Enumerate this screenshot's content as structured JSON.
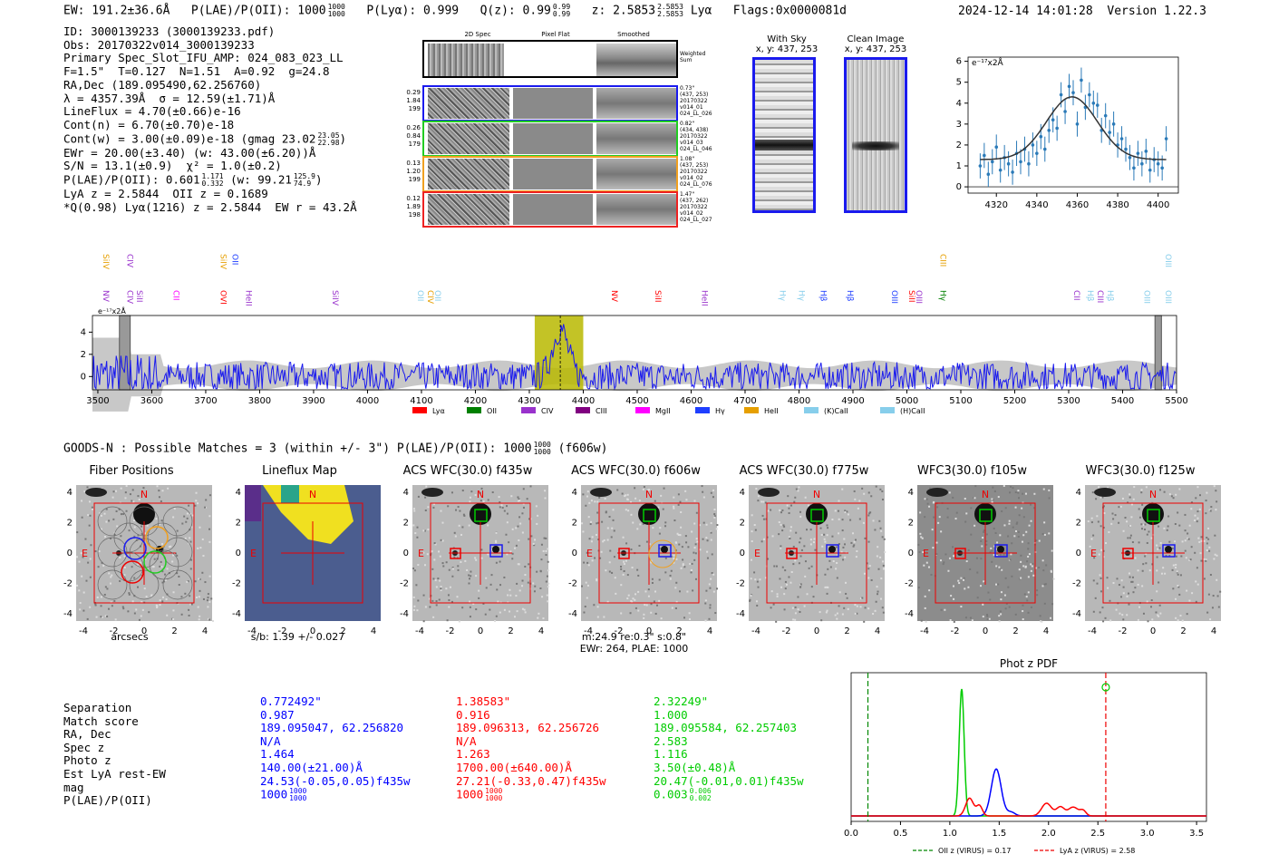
{
  "header": {
    "ew": "EW: 191.2±36.6Å",
    "plae": "P(LAE)/P(OII): 1000",
    "plae_hi": "1000",
    "plae_lo": "1000",
    "plya": "P(Lyα): 0.999",
    "qz": "Q(z): 0.99",
    "qz_hi": "0.99",
    "qz_lo": "0.99",
    "z": "z: 2.5853",
    "z_hi": "2.5853",
    "z_lo": "2.5853",
    "z_line": "Lyα",
    "flags": "Flags:0x0000081d",
    "datetime": "2024-12-14 14:01:28",
    "version": "Version 1.22.3"
  },
  "info": {
    "l1": "ID: 3000139233 (3000139233.pdf)",
    "l2": "Obs: 20170322v014_3000139233",
    "l3": "Primary Spec_Slot_IFU_AMP: 024_083_023_LL",
    "l4": "F=1.5\"  T=0.127  N=1.51  A=0.92  g=24.8",
    "l5": "RA,Dec (189.095490,62.256760)",
    "l6": "λ = 4357.39Å  σ = 12.59(±1.71)Å",
    "l7": "LineFlux = 4.70(±0.66)e-16",
    "l8": "Cont(n) = 6.70(±0.70)e-18",
    "l9": "Cont(w) = 3.00(±0.09)e-18 (gmag 23.02",
    "l9_hi": "23.05",
    "l9_lo": "22.98",
    "l10": "EWr = 20.00(±3.40) (w: 43.00(±6.20))Å",
    "l11": "S/N = 13.1(±0.9)  χ² = 1.0(±0.2)",
    "l12": "P(LAE)/P(OII): 0.601",
    "l12_hi": "1.171",
    "l12_lo": "0.332",
    "l12b": "(w: 99.21",
    "l12b_hi": "125.9",
    "l12b_lo": "74.9",
    "l13": "LyA z = 2.5844  OII z = 0.1689",
    "l14": "*Q(0.98) Lyα(1216) z = 2.5844  EW r = 43.2Å"
  },
  "cutouts": {
    "col_2d": "2D Spec",
    "col_flat": "Pixel Flat",
    "col_smooth": "Smoothed",
    "weighted": "Weighted Sum",
    "rows": [
      {
        "v1": "0.29",
        "v2": "1.84",
        "v3": "199",
        "r1": "0.73\"",
        "r2": "(437, 253)",
        "r3": "20170322",
        "r4": "v014_01",
        "r5": "024_LL_026"
      },
      {
        "v1": "0.26",
        "v2": "0.84",
        "v3": "179",
        "r1": "0.82\"",
        "r2": "(434, 438)",
        "r3": "20170322",
        "r4": "v014_03",
        "r5": "024_LL_046"
      },
      {
        "v1": "0.13",
        "v2": "1.20",
        "v3": "199",
        "r1": "1.08\"",
        "r2": "(437, 253)",
        "r3": "20170322",
        "r4": "v014_02",
        "r5": "024_LL_076"
      },
      {
        "v1": "0.12",
        "v2": "1.89",
        "v3": "198",
        "r1": "1.47\"",
        "r2": "(437, 262)",
        "r3": "20170322",
        "r4": "v014_02",
        "r5": "024_LL_027"
      }
    ],
    "withsky_title": "With Sky",
    "withsky_coords": "x, y: 437, 253",
    "clean_title": "Clean Image",
    "clean_coords": "x, y: 437, 253"
  },
  "fit_plot": {
    "scale_label": "e⁻¹⁷x2Å",
    "chart_data": {
      "type": "scatter",
      "title": "",
      "x_ticks": [
        4320,
        4340,
        4360,
        4380,
        4400
      ],
      "y_ticks": [
        0,
        1,
        2,
        3,
        4,
        5,
        6
      ],
      "xlim": [
        4306,
        4410
      ],
      "ylim": [
        -0.3,
        6.2
      ],
      "x": [
        4312,
        4314,
        4316,
        4318,
        4320,
        4322,
        4324,
        4326,
        4328,
        4330,
        4332,
        4334,
        4336,
        4338,
        4340,
        4342,
        4344,
        4346,
        4348,
        4350,
        4352,
        4354,
        4356,
        4358,
        4360,
        4362,
        4364,
        4366,
        4368,
        4370,
        4372,
        4374,
        4376,
        4378,
        4380,
        4382,
        4384,
        4386,
        4388,
        4390,
        4392,
        4394,
        4396,
        4398,
        4400,
        4402,
        4404
      ],
      "y": [
        1.0,
        1.5,
        0.6,
        1.2,
        1.9,
        0.8,
        1.4,
        1.1,
        0.7,
        1.6,
        1.2,
        1.8,
        1.1,
        2.0,
        1.6,
        2.4,
        1.8,
        2.7,
        3.2,
        2.8,
        4.4,
        3.6,
        4.8,
        4.5,
        3.0,
        5.1,
        3.8,
        4.4,
        4.0,
        3.9,
        2.7,
        3.4,
        2.6,
        3.0,
        2.0,
        2.3,
        1.8,
        1.4,
        0.9,
        1.6,
        1.1,
        1.7,
        0.8,
        1.3,
        1.1,
        0.9,
        2.3
      ],
      "err": [
        0.6,
        0.6,
        0.6,
        0.6,
        0.6,
        0.6,
        0.6,
        0.6,
        0.6,
        0.6,
        0.6,
        0.6,
        0.6,
        0.6,
        0.6,
        0.6,
        0.6,
        0.6,
        0.6,
        0.6,
        0.6,
        0.6,
        0.6,
        0.6,
        0.6,
        0.6,
        0.6,
        0.6,
        0.6,
        0.6,
        0.6,
        0.6,
        0.6,
        0.6,
        0.6,
        0.6,
        0.6,
        0.6,
        0.6,
        0.6,
        0.6,
        0.6,
        0.6,
        0.6,
        0.6,
        0.6,
        0.6
      ],
      "fit_center": 4357.39,
      "fit_sigma": 12.59,
      "fit_amp": 3.0,
      "fit_base": 1.3
    }
  },
  "spectrum": {
    "scale_label": "e⁻¹⁷x2Å",
    "chart_data": {
      "type": "line",
      "xlim": [
        3490,
        5500
      ],
      "ylim": [
        -1.2,
        5.5
      ],
      "x_ticks": [
        3500,
        3600,
        3700,
        3800,
        3900,
        4000,
        4100,
        4200,
        4300,
        4400,
        4500,
        4600,
        4700,
        4800,
        4900,
        5000,
        5100,
        5200,
        5300,
        5400,
        5500
      ],
      "y_ticks": [
        0,
        2,
        4
      ],
      "highlight_range": [
        4310,
        4400
      ],
      "line_center": 4357.39,
      "masked": [
        [
          3540,
          3560
        ],
        [
          5460,
          5472
        ]
      ],
      "lines_upper": [
        {
          "label": "SiIV",
          "x": 3510,
          "color": "#e69f00"
        },
        {
          "label": "CIV",
          "x": 3555,
          "color": "#9932cc"
        },
        {
          "label": "SiIV",
          "x": 3728,
          "color": "#e69f00"
        },
        {
          "label": "OII",
          "x": 3750,
          "color": "#1f3fff"
        },
        {
          "label": "CIII",
          "x": 5062,
          "color": "#e69f00"
        },
        {
          "label": "OIII",
          "x": 5480,
          "color": "#87ceeb"
        }
      ],
      "lines_lower": [
        {
          "label": "NV",
          "x": 3510,
          "color": "#9932cc"
        },
        {
          "label": "CIV",
          "x": 3555,
          "color": "#9932cc"
        },
        {
          "label": "SiII",
          "x": 3572,
          "color": "#9932cc"
        },
        {
          "label": "CII",
          "x": 3640,
          "color": "#ff00ff"
        },
        {
          "label": "OVI",
          "x": 3728,
          "color": "#ff0000"
        },
        {
          "label": "HeII",
          "x": 3775,
          "color": "#9932cc"
        },
        {
          "label": "SiIV",
          "x": 3935,
          "color": "#9932cc"
        },
        {
          "label": "OII",
          "x": 4093,
          "color": "#87ceeb"
        },
        {
          "label": "CIV",
          "x": 4112,
          "color": "#e69f00"
        },
        {
          "label": "OII",
          "x": 4125,
          "color": "#87ceeb"
        },
        {
          "label": "NV",
          "x": 4453,
          "color": "#ff0000"
        },
        {
          "label": "SiII",
          "x": 4534,
          "color": "#ff0000"
        },
        {
          "label": "HeII",
          "x": 4620,
          "color": "#9932cc"
        },
        {
          "label": "Hγ",
          "x": 4765,
          "color": "#87ceeb"
        },
        {
          "label": "Hγ",
          "x": 4800,
          "color": "#87ceeb"
        },
        {
          "label": "Hβ",
          "x": 4840,
          "color": "#1f3fff"
        },
        {
          "label": "Hβ",
          "x": 4890,
          "color": "#1f3fff"
        },
        {
          "label": "OIII",
          "x": 4972,
          "color": "#1f3fff"
        },
        {
          "label": "SiII",
          "x": 5004,
          "color": "#ff0000"
        },
        {
          "label": "OIII",
          "x": 5018,
          "color": "#9932cc"
        },
        {
          "label": "Hγ",
          "x": 5062,
          "color": "#008000"
        },
        {
          "label": "CII",
          "x": 5310,
          "color": "#9932cc"
        },
        {
          "label": "Hβ",
          "x": 5335,
          "color": "#87ceeb"
        },
        {
          "label": "CIII",
          "x": 5354,
          "color": "#9932cc"
        },
        {
          "label": "Hβ",
          "x": 5372,
          "color": "#87ceeb"
        },
        {
          "label": "OIII",
          "x": 5440,
          "color": "#87ceeb"
        },
        {
          "label": "OIII",
          "x": 5480,
          "color": "#87ceeb"
        }
      ]
    },
    "legend": [
      {
        "label": "Lyα",
        "color": "#ff0000"
      },
      {
        "label": "OII",
        "color": "#008000"
      },
      {
        "label": "CIV",
        "color": "#9932cc"
      },
      {
        "label": "CIII",
        "color": "#800080"
      },
      {
        "label": "MgII",
        "color": "#ff00ff"
      },
      {
        "label": "Hγ",
        "color": "#1f3fff"
      },
      {
        "label": "HeII",
        "color": "#e69f00"
      },
      {
        "label": "(K)CaII",
        "color": "#87ceeb"
      },
      {
        "label": "(H)CaII",
        "color": "#87ceeb"
      }
    ]
  },
  "imaging": {
    "summary": "GOODS-N : Possible Matches = 3 (within +/- 3\")  P(LAE)/P(OII): 1000",
    "summary_hi": "1000",
    "summary_lo": "1000",
    "summary_band": "(f606w)",
    "ticks": [
      "-4",
      "-2",
      "0",
      "2",
      "4"
    ],
    "north": "N",
    "east": "E",
    "panels": [
      {
        "title": "Fiber Positions",
        "caption1": "arcsecs",
        "caption2": ""
      },
      {
        "title": "Lineflux Map",
        "caption1": "s/b: 1.39 +/- 0.027",
        "caption2": ""
      },
      {
        "title": "ACS WFC(30.0) f435w",
        "caption1": "",
        "caption2": ""
      },
      {
        "title": "ACS WFC(30.0) f606w",
        "caption1": "m:24.9  re:0.3\"  s:0.8\"",
        "caption2": "EWr: 264, PLAE: 1000"
      },
      {
        "title": "ACS WFC(30.0) f775w",
        "caption1": "",
        "caption2": ""
      },
      {
        "title": "WFC3(30.0) f105w",
        "caption1": "",
        "caption2": ""
      },
      {
        "title": "WFC3(30.0) f125w",
        "caption1": "",
        "caption2": ""
      }
    ]
  },
  "matches": {
    "labels": [
      "Separation",
      "Match score",
      "RA, Dec",
      "Spec z",
      "Photo z",
      "Est LyA rest-EW",
      "mag",
      "P(LAE)/P(OII)"
    ],
    "columns": [
      {
        "color": "#0000ff",
        "values": [
          "0.772492\"",
          "0.987",
          "189.095047, 62.256820",
          "N/A",
          "1.464",
          "140.00(±21.00)Å",
          "24.53(-0.05,0.05)f435w"
        ],
        "plae": "1000",
        "plae_hi": "1000",
        "plae_lo": "1000"
      },
      {
        "color": "#ff0000",
        "values": [
          "1.38583\"",
          "0.916",
          "189.096313, 62.256726",
          "N/A",
          "1.263",
          "1700.00(±640.00)Å",
          "27.21(-0.33,0.47)f435w"
        ],
        "plae": "1000",
        "plae_hi": "1000",
        "plae_lo": "1000"
      },
      {
        "color": "#00cc00",
        "values": [
          "2.32249\"",
          "1.000",
          "189.095584, 62.257403",
          "2.583",
          "1.116",
          "3.50(±0.48)Å",
          "20.47(-0.01,0.01)f435w"
        ],
        "plae": "0.003",
        "plae_hi": "0.006",
        "plae_lo": "0.002"
      }
    ]
  },
  "photz": {
    "chart_data": {
      "type": "line",
      "title": "Phot z PDF",
      "xlim": [
        0.0,
        3.6
      ],
      "x_ticks": [
        "0.0",
        "0.5",
        "1.0",
        "1.5",
        "2.0",
        "2.5",
        "3.0",
        "3.5"
      ],
      "oii_z": 0.17,
      "lya_z": 2.58,
      "legend_oii": "OII z (VIRUS) = 0.17",
      "legend_lya": "LyA z (VIRUS) = 2.58",
      "series": [
        {
          "name": "green",
          "color": "#00cc00",
          "peaks": [
            [
              1.12,
              1.0,
              0.025
            ]
          ]
        },
        {
          "name": "blue",
          "color": "#0000ff",
          "peaks": [
            [
              1.47,
              0.37,
              0.05
            ],
            [
              1.62,
              0.03,
              0.04
            ]
          ]
        },
        {
          "name": "red",
          "color": "#ff0000",
          "peaks": [
            [
              1.2,
              0.14,
              0.04
            ],
            [
              1.3,
              0.08,
              0.03
            ],
            [
              1.98,
              0.1,
              0.05
            ],
            [
              2.12,
              0.07,
              0.04
            ],
            [
              2.25,
              0.07,
              0.05
            ],
            [
              2.35,
              0.04,
              0.03
            ]
          ]
        }
      ]
    }
  }
}
